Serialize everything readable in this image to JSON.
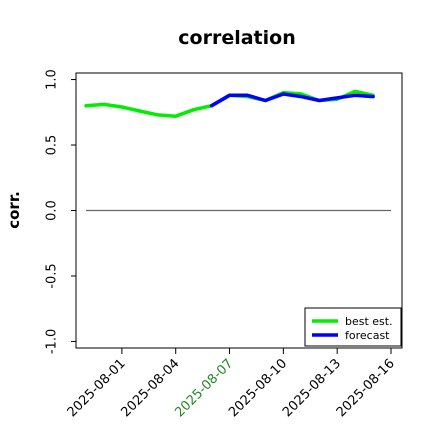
{
  "chart_data": {
    "type": "line",
    "title": "correlation",
    "xlabel": "",
    "ylabel": "corr.",
    "ylim": [
      -1.05,
      1.05
    ],
    "yticks": [
      1.0,
      0.5,
      0.0,
      -0.5,
      -1.0
    ],
    "ytick_labels": [
      "1.0",
      "0.5",
      "0.0",
      "-0.5",
      "-1.0"
    ],
    "x": [
      "2025-07-30",
      "2025-07-31",
      "2025-08-01",
      "2025-08-02",
      "2025-08-03",
      "2025-08-04",
      "2025-08-05",
      "2025-08-06",
      "2025-08-07",
      "2025-08-08",
      "2025-08-09",
      "2025-08-10",
      "2025-08-11",
      "2025-08-12",
      "2025-08-13",
      "2025-08-14",
      "2025-08-15",
      "2025-08-16"
    ],
    "xticks": [
      {
        "label": "2025-08-01",
        "color": "#000000"
      },
      {
        "label": "2025-08-04",
        "color": "#000000"
      },
      {
        "label": "2025-08-07",
        "color": "#228b22"
      },
      {
        "label": "2025-08-10",
        "color": "#000000"
      },
      {
        "label": "2025-08-13",
        "color": "#000000"
      },
      {
        "label": "2025-08-16",
        "color": "#000000"
      }
    ],
    "series": [
      {
        "name": "best est.",
        "color": "#00ee00",
        "values": [
          0.8,
          0.81,
          0.79,
          0.76,
          0.73,
          0.72,
          0.77,
          0.8,
          0.88,
          0.87,
          0.84,
          0.9,
          0.89,
          0.84,
          0.85,
          0.91,
          0.88,
          null
        ]
      },
      {
        "name": "forecast",
        "color": "#0000ff",
        "values": [
          null,
          null,
          null,
          null,
          null,
          null,
          null,
          0.8,
          0.88,
          0.88,
          0.84,
          0.89,
          0.87,
          0.84,
          0.86,
          0.88,
          0.87,
          null
        ]
      }
    ],
    "reference_line": {
      "y": 0.0,
      "color": "#666666"
    },
    "grid": false,
    "legend_position": "lower-right"
  }
}
